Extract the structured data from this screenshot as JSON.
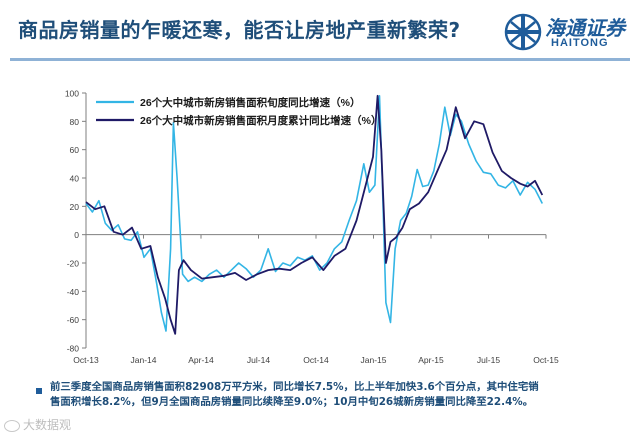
{
  "slide": {
    "title": "商品房销量的乍暖还寒，能否让房地产重新繁荣?",
    "logo_cn": "海通证券",
    "logo_en": "HAITONG"
  },
  "note": {
    "line1": "前三季度全国商品房销售面积82908万平方米，同比增长7.5%，比上半年加快3.6个百分点，其中住宅销",
    "line2": "售面积增长8.2%，但9月全国商品房销量同比续降至9.0%；10月中旬26城新房销量同比降至22.4%。"
  },
  "watermark": "大数据观",
  "colors": {
    "title": "#1f4e79",
    "series1": "#33b5e5",
    "series2": "#1f1a66",
    "axis": "#7f7f7f",
    "rule": "#8fb2d6"
  },
  "chart_data": {
    "type": "line",
    "ylim": [
      -80,
      100
    ],
    "yticks": [
      -80,
      -60,
      -40,
      -20,
      0,
      20,
      40,
      60,
      80,
      100
    ],
    "xticks": [
      "Oct-13",
      "Jan-14",
      "Apr-14",
      "Jul-14",
      "Oct-14",
      "Jan-15",
      "Apr-15",
      "Jul-15",
      "Oct-15"
    ],
    "xlim": [
      0,
      25
    ],
    "legend_position": "top-left",
    "series": [
      {
        "name": "26个大中城市新房销售面积旬度同比增速（%）",
        "color": "#33b5e5",
        "x": [
          0,
          0.35,
          0.7,
          1.05,
          1.4,
          1.75,
          2.1,
          2.45,
          2.8,
          3.15,
          3.5,
          3.85,
          4.1,
          4.35,
          4.6,
          4.75,
          4.95,
          5.25,
          5.55,
          5.9,
          6.3,
          6.7,
          7.1,
          7.5,
          7.9,
          8.3,
          8.7,
          9.1,
          9.5,
          9.9,
          10.3,
          10.7,
          11.1,
          11.5,
          11.9,
          12.3,
          12.7,
          13.1,
          13.5,
          13.9,
          14.3,
          14.7,
          15.1,
          15.4,
          15.7,
          15.95,
          16.1,
          16.3,
          16.55,
          16.8,
          17.1,
          17.4,
          17.7,
          18.0,
          18.3,
          18.6,
          18.9,
          19.2,
          19.5,
          19.8,
          20.1,
          20.4,
          20.8,
          21.2,
          21.6,
          22.0,
          22.4,
          22.8,
          23.2,
          23.6,
          24.0,
          24.4,
          24.8
        ],
        "y": [
          22,
          16,
          24,
          8,
          3,
          7,
          -3,
          -4,
          2,
          -16,
          -10,
          -35,
          -55,
          -68,
          -10,
          79,
          40,
          -28,
          -33,
          -30,
          -33,
          -28,
          -25,
          -30,
          -25,
          -20,
          -24,
          -30,
          -25,
          -10,
          -26,
          -20,
          -22,
          -16,
          -18,
          -15,
          -25,
          -20,
          -10,
          -5,
          10,
          24,
          50,
          30,
          35,
          98,
          40,
          -48,
          -62,
          -10,
          10,
          15,
          27,
          46,
          34,
          35,
          45,
          64,
          90,
          70,
          85,
          80,
          64,
          52,
          44,
          43,
          35,
          33,
          38,
          28,
          37,
          32,
          22
        ]
      },
      {
        "name": "26个大中城市新房销售面积月度累计同比增速（%）",
        "color": "#1f1a66",
        "x": [
          0,
          0.5,
          1.0,
          1.5,
          2.0,
          2.5,
          3.0,
          3.5,
          3.9,
          4.3,
          4.6,
          4.85,
          5.05,
          5.3,
          5.7,
          6.3,
          6.9,
          7.5,
          8.1,
          8.7,
          9.3,
          9.9,
          10.5,
          11.1,
          11.7,
          12.3,
          12.9,
          13.5,
          14.1,
          14.7,
          15.2,
          15.6,
          15.85,
          16.05,
          16.3,
          16.55,
          16.85,
          17.2,
          17.6,
          18.1,
          18.6,
          19.1,
          19.6,
          20.1,
          20.6,
          21.1,
          21.6,
          22.1,
          22.6,
          23.1,
          23.6,
          24.0,
          24.4,
          24.8
        ],
        "y": [
          23,
          18,
          20,
          2,
          0,
          5,
          -10,
          -8,
          -30,
          -45,
          -60,
          -70,
          -25,
          -18,
          -25,
          -31,
          -30,
          -29,
          -27,
          -32,
          -28,
          -25,
          -24,
          -25,
          -20,
          -16,
          -25,
          -15,
          -10,
          10,
          35,
          55,
          98,
          60,
          -20,
          -5,
          -2,
          5,
          18,
          22,
          30,
          45,
          60,
          90,
          68,
          80,
          78,
          58,
          45,
          40,
          36,
          34,
          38,
          28
        ]
      }
    ]
  }
}
